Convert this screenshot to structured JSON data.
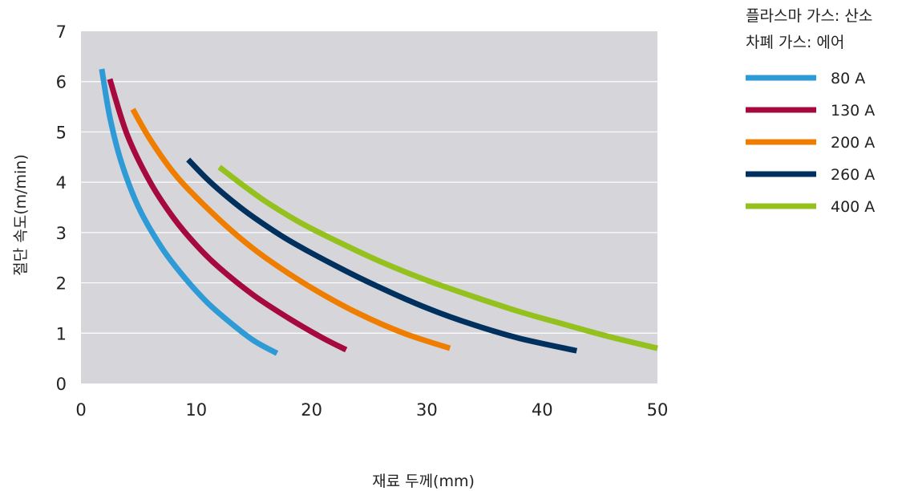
{
  "chart_data": {
    "type": "line",
    "xlabel": "재료 두께(mm)",
    "ylabel": "절단 속도(m/min)",
    "xlim": [
      0,
      50
    ],
    "ylim": [
      0,
      7
    ],
    "xticks": [
      0,
      10,
      20,
      30,
      40,
      50
    ],
    "yticks": [
      0,
      1,
      2,
      3,
      4,
      5,
      6,
      7
    ],
    "grid": "horizontal",
    "background": "#d5d5da",
    "legend_title_lines": [
      "플라스마 가스: 산소",
      "차폐 가스: 에어"
    ],
    "legend_position": "top-right-outside",
    "series": [
      {
        "name": "80 A",
        "color": "#2e9bd6",
        "x": [
          1.8,
          2.5,
          3.5,
          5,
          7,
          9,
          11,
          13,
          15,
          17
        ],
        "y": [
          6.25,
          5.3,
          4.4,
          3.5,
          2.7,
          2.1,
          1.6,
          1.2,
          0.85,
          0.6
        ]
      },
      {
        "name": "130 A",
        "color": "#a6093d",
        "x": [
          2.5,
          4,
          6,
          8,
          10,
          12,
          15,
          18,
          21,
          23
        ],
        "y": [
          6.05,
          4.95,
          4.0,
          3.3,
          2.75,
          2.3,
          1.75,
          1.3,
          0.9,
          0.67
        ]
      },
      {
        "name": "200 A",
        "color": "#ef7d00",
        "x": [
          4.5,
          6,
          8,
          10,
          13,
          16,
          20,
          24,
          28,
          32
        ],
        "y": [
          5.45,
          4.85,
          4.2,
          3.7,
          3.05,
          2.5,
          1.9,
          1.4,
          1.0,
          0.7
        ]
      },
      {
        "name": "260 A",
        "color": "#00305e",
        "x": [
          9.3,
          11,
          13,
          15,
          18,
          22,
          26,
          30,
          34,
          38,
          43
        ],
        "y": [
          4.45,
          4.05,
          3.65,
          3.3,
          2.85,
          2.35,
          1.9,
          1.5,
          1.17,
          0.9,
          0.65
        ]
      },
      {
        "name": "400 A",
        "color": "#95c11f",
        "x": [
          12,
          14,
          16,
          19,
          22,
          26,
          30,
          34,
          38,
          42,
          46,
          50
        ],
        "y": [
          4.3,
          3.95,
          3.62,
          3.2,
          2.85,
          2.42,
          2.05,
          1.73,
          1.43,
          1.17,
          0.92,
          0.7
        ]
      }
    ]
  }
}
